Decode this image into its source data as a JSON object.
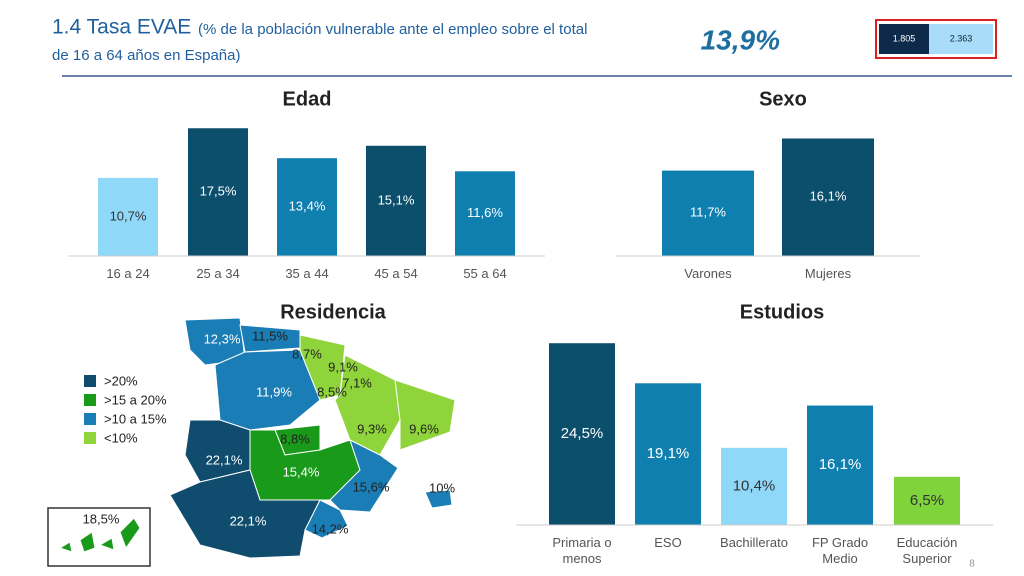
{
  "header": {
    "title": "1.4 Tasa EVAE",
    "subtitle": "(% de la población vulnerable ante el empleo sobre el total de 16 a 64 años en España)",
    "headline": "13,9%",
    "badges": [
      "1.805",
      "2.363"
    ],
    "page_number": "8"
  },
  "chart_data": [
    {
      "type": "bar",
      "title": "Edad",
      "categories": [
        "16 a 24",
        "25 a 34",
        "35 a 44",
        "45 a 54",
        "55 a 64"
      ],
      "values": [
        10.7,
        17.5,
        13.4,
        15.1,
        11.6
      ],
      "value_labels": [
        "10,7%",
        "17,5%",
        "13,4%",
        "15,1%",
        "11,6%"
      ],
      "colors": [
        "#8fd8f8",
        "#0b4f6c",
        "#0f7fb0",
        "#0b4f6c",
        "#0f7fb0"
      ]
    },
    {
      "type": "bar",
      "title": "Sexo",
      "categories": [
        "Varones",
        "Mujeres"
      ],
      "values": [
        11.7,
        16.1
      ],
      "value_labels": [
        "11,7%",
        "16,1%"
      ],
      "colors": [
        "#0f7fb0",
        "#0b4f6c"
      ]
    },
    {
      "type": "bar",
      "title": "Estudios",
      "categories": [
        "Primaria o menos",
        "ESO",
        "Bachillerato",
        "FP Grado Medio",
        "Educación Superior"
      ],
      "values": [
        24.5,
        19.1,
        10.4,
        16.1,
        6.5
      ],
      "value_labels": [
        "24,5%",
        "19,1%",
        "10,4%",
        "16,1%",
        "6,5%"
      ],
      "colors": [
        "#0b4f6c",
        "#0f7fb0",
        "#8fd8f8",
        "#0f7fb0",
        "#7ed43a"
      ]
    }
  ],
  "map": {
    "title": "Residencia",
    "legend": [
      {
        "label": ">20%",
        "color": "#0f4c6e"
      },
      {
        "label": ">15 a 20%",
        "color": "#1a9a1a"
      },
      {
        "label": ">10 a 15%",
        "color": "#1b7db5"
      },
      {
        "label": "<10%",
        "color": "#8fd43a"
      }
    ],
    "regions": [
      "12,3%",
      "11,5%",
      "8,7%",
      "9,1%",
      "7,1%",
      "11,9%",
      "8,5%",
      "9,3%",
      "9,6%",
      "8,8%",
      "22,1%",
      "15,4%",
      "15,6%",
      "10%",
      "22,1%",
      "14,2%",
      "18,5%"
    ]
  }
}
